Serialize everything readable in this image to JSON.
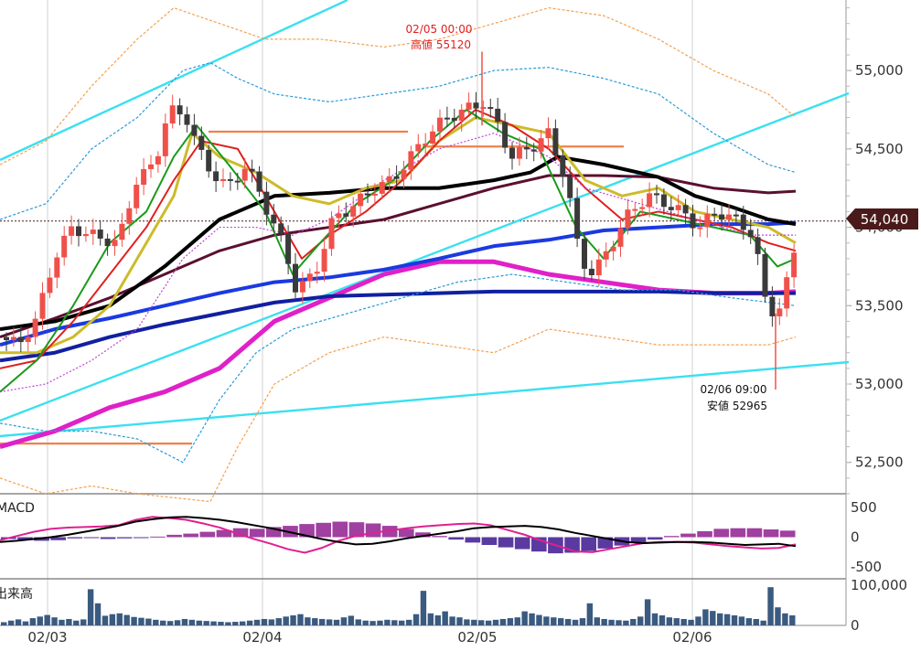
{
  "chart_data": {
    "type": "candlestick",
    "x_labels": [
      "02/03",
      "02/04",
      "02/05",
      "02/06"
    ],
    "price_axis": {
      "ticks": [
        "55,000",
        "54,500",
        "54,000",
        "53,500",
        "53,000",
        "52,500"
      ],
      "tick_values": [
        55000,
        54500,
        54000,
        53500,
        53000,
        52500
      ],
      "range": [
        52300,
        55450
      ]
    },
    "current_price": {
      "label": "54,040",
      "value": 54040
    },
    "annotations": {
      "high": {
        "time": "02/05 00:00",
        "text": "高値 55120",
        "value": 55120
      },
      "low": {
        "time": "02/06 09:00",
        "text": "安値 52965",
        "value": 52965
      }
    },
    "macd": {
      "label": "MACD",
      "ticks": [
        "500",
        "0",
        "-500"
      ],
      "tick_values": [
        500,
        0,
        -500
      ],
      "range": [
        -650,
        650
      ],
      "macd_line": [
        -80,
        -60,
        -30,
        0,
        40,
        90,
        140,
        190,
        260,
        300,
        330,
        340,
        320,
        290,
        250,
        200,
        150,
        90,
        30,
        -30,
        -80,
        -120,
        -110,
        -70,
        -20,
        20,
        60,
        100,
        150,
        170,
        180,
        190,
        170,
        130,
        70,
        20,
        -30,
        -80,
        -100,
        -90,
        -80,
        -80,
        -90,
        -110,
        -130,
        -120,
        -110,
        -150
      ],
      "signal_line": [
        -50,
        20,
        90,
        140,
        160,
        170,
        180,
        200,
        290,
        340,
        320,
        290,
        230,
        160,
        60,
        -30,
        -110,
        -200,
        -260,
        -180,
        -60,
        20,
        70,
        110,
        150,
        180,
        200,
        220,
        230,
        200,
        120,
        40,
        -60,
        -150,
        -240,
        -250,
        -200,
        -150,
        -100,
        -80,
        -80,
        -90,
        -120,
        -150,
        -170,
        -190,
        -180,
        -120
      ],
      "histogram": [
        -30,
        -40,
        -60,
        -50,
        -20,
        -10,
        -30,
        -20,
        -10,
        10,
        40,
        60,
        90,
        120,
        150,
        140,
        170,
        190,
        220,
        240,
        260,
        250,
        230,
        190,
        140,
        80,
        20,
        -40,
        -90,
        -130,
        -170,
        -200,
        -240,
        -270,
        -260,
        -230,
        -190,
        -140,
        -90,
        -40,
        20,
        60,
        100,
        140,
        150,
        150,
        130,
        110
      ]
    },
    "volume": {
      "label": "出来高",
      "ticks": [
        "100,000",
        "0"
      ],
      "tick_values": [
        100000,
        0
      ],
      "bars": [
        8000,
        12000,
        15000,
        10000,
        18000,
        22000,
        26000,
        20000,
        14000,
        16000,
        12000,
        15000,
        90000,
        55000,
        24000,
        28000,
        30000,
        26000,
        21000,
        19000,
        17000,
        14000,
        12000,
        11000,
        13000,
        16000,
        14000,
        12000,
        11000,
        10000,
        9000,
        8000,
        9000,
        10000,
        12000,
        14000,
        16000,
        15000,
        18000,
        22000,
        25000,
        28000,
        20000,
        18000,
        16000,
        15000,
        14000,
        20000,
        24000,
        15000,
        12000,
        11000,
        12000,
        14000,
        13000,
        12000,
        14000,
        28000,
        86000,
        30000,
        25000,
        35000,
        22000,
        20000,
        15000,
        14000,
        13000,
        12000,
        14000,
        16000,
        18000,
        20000,
        35000,
        30000,
        26000,
        22000,
        20000,
        18000,
        16000,
        14000,
        18000,
        55000,
        20000,
        16000,
        14000,
        13000,
        12000,
        16000,
        22000,
        65000,
        30000,
        25000,
        20000,
        18000,
        16000,
        14000,
        22000,
        40000,
        36000,
        30000,
        28000,
        25000,
        22000,
        18000,
        16000,
        12000,
        95000,
        45000,
        30000,
        25000
      ]
    }
  },
  "colors": {
    "up": "#f0504a",
    "down": "#3a3a3a",
    "ma_fast": "#1a9a1a",
    "ma_red": "#e02020",
    "ma_yellow": "#cdbb2a",
    "ma_black": "#000000",
    "ma_maroon": "#5a1030",
    "ma_blue": "#1a3ae0",
    "ma_navy": "#1020a0",
    "ma_magenta": "#e020c8",
    "trend": "#3ae0f0",
    "support": "#f0804a",
    "bollinger_outer": "#f4a050",
    "bollinger_mid": "#2a9ad8",
    "bollinger_inner": "#c040e0",
    "macd_line": "#000000",
    "signal_line": "#e02090",
    "histogram": "#5a3aa0",
    "volume_bar": "#3a5a80",
    "price_tag_bg": "#4a1a1a"
  }
}
